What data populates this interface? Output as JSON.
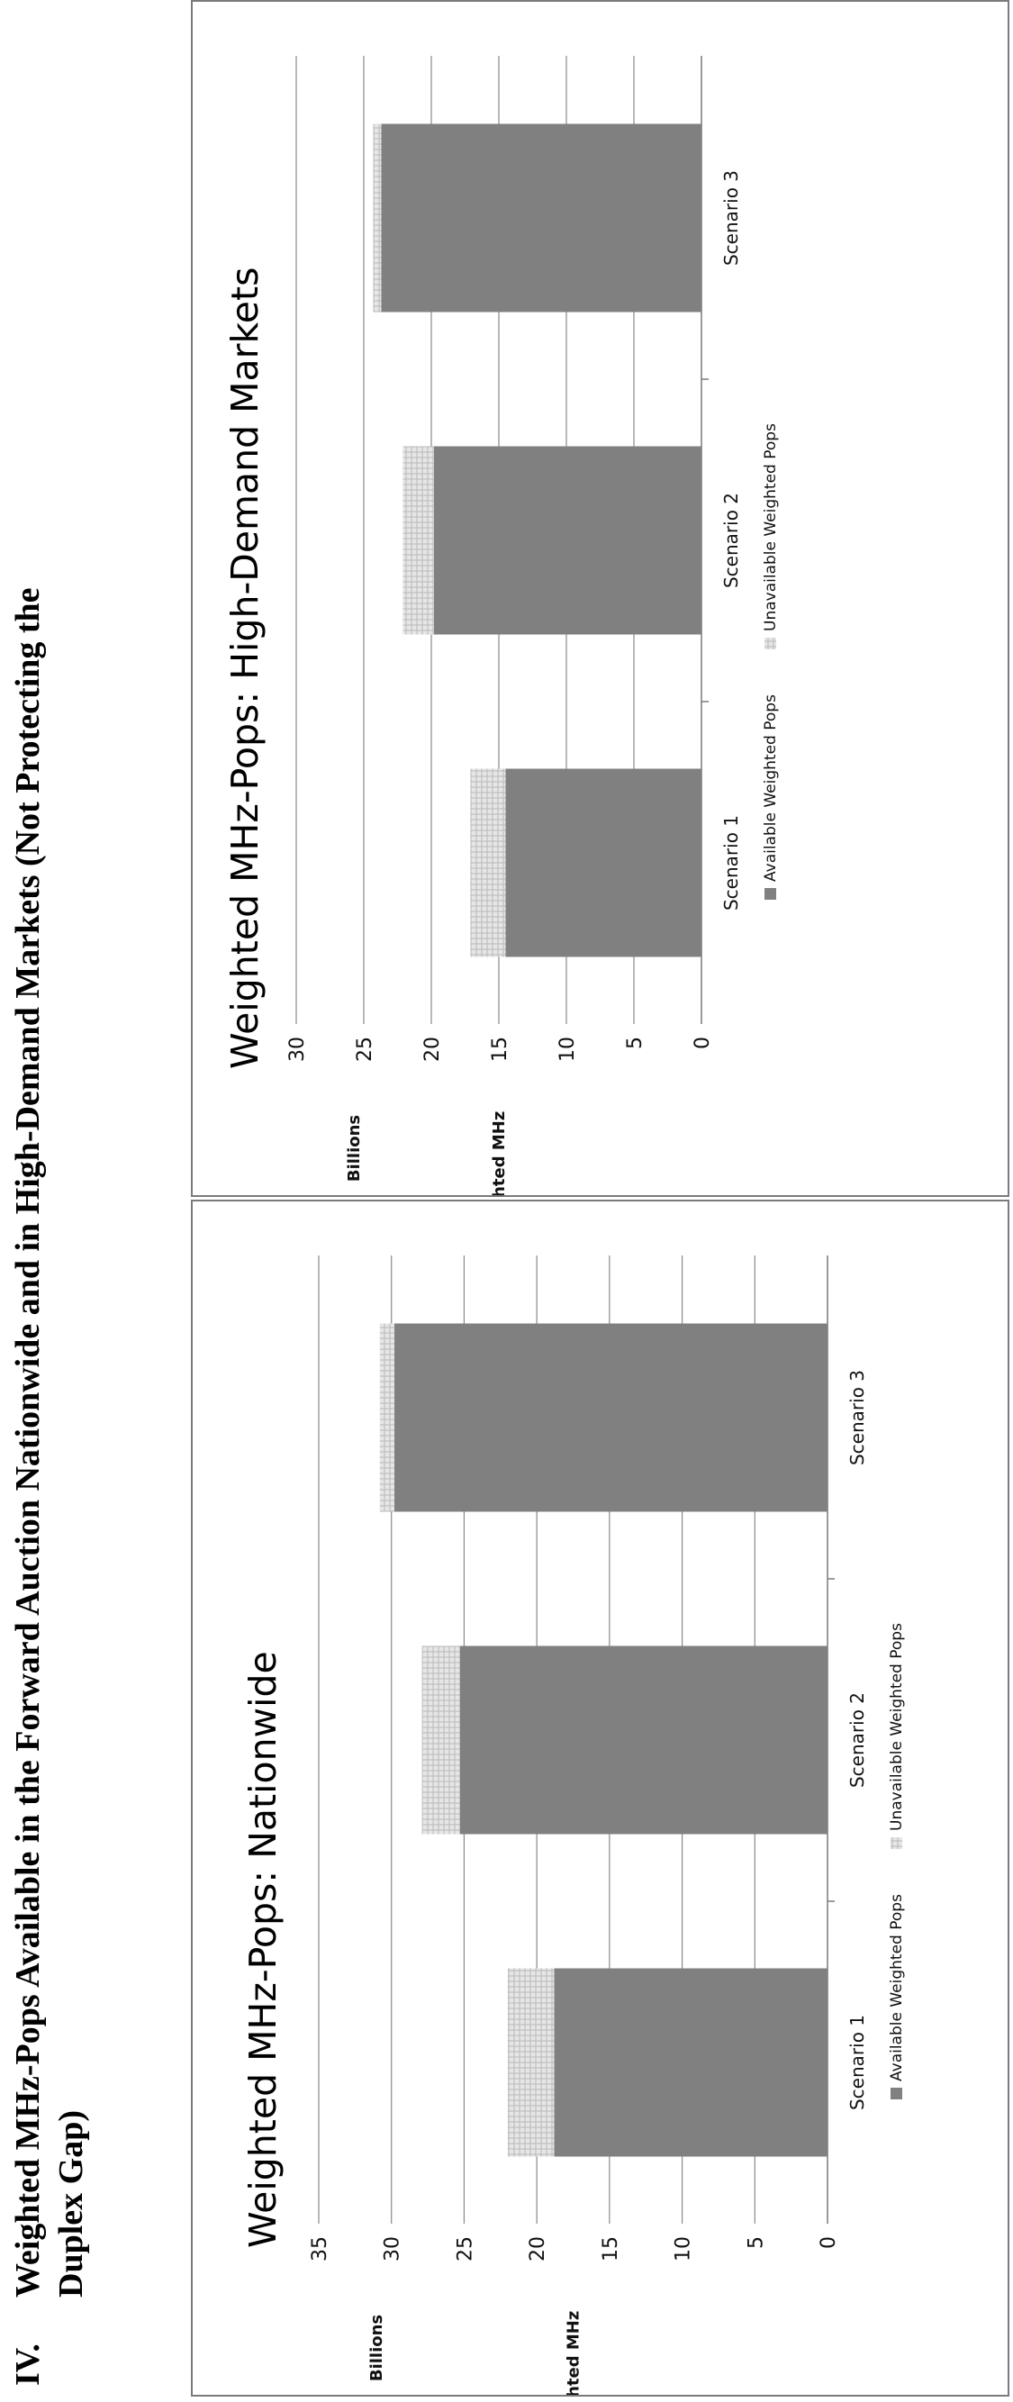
{
  "heading": {
    "number": "IV.",
    "line1": "Weighted MHz-Pops Available in the Forward Auction Nationwide and in High-Demand Markets (Not Protecting the",
    "line2": "Duplex Gap)"
  },
  "chart_data": [
    {
      "type": "bar",
      "stacked": true,
      "title": "Weighted MHz-Pops: Nationwide",
      "xlabel": "",
      "ylabel": "Weighted MHz",
      "yunit": "Billions",
      "ylim": [
        0,
        35
      ],
      "yticks": [
        0,
        5,
        10,
        15,
        20,
        25,
        30,
        35
      ],
      "categories": [
        "Scenario 1",
        "Scenario 2",
        "Scenario 3"
      ],
      "series": [
        {
          "name": "Available Weighted Pops",
          "values": [
            18.8,
            25.3,
            29.8
          ],
          "color": "#808080"
        },
        {
          "name": "Unavailable Weighted Pops",
          "values": [
            3.2,
            2.6,
            1.0
          ],
          "color": "#d0d0d0"
        }
      ],
      "grid": true,
      "legend": "bottom"
    },
    {
      "type": "bar",
      "stacked": true,
      "title": "Weighted MHz-Pops: High-Demand Markets",
      "xlabel": "",
      "ylabel": "Weighted MHz",
      "yunit": "Billions",
      "ylim": [
        0,
        30
      ],
      "yticks": [
        0,
        5,
        10,
        15,
        20,
        25,
        30
      ],
      "categories": [
        "Scenario 1",
        "Scenario 2",
        "Scenario 3"
      ],
      "series": [
        {
          "name": "Available Weighted Pops",
          "values": [
            14.5,
            19.8,
            23.7
          ],
          "color": "#808080"
        },
        {
          "name": "Unavailable Weighted Pops",
          "values": [
            2.6,
            2.3,
            0.6
          ],
          "color": "#d0d0d0"
        }
      ],
      "grid": true,
      "legend": "bottom"
    }
  ]
}
